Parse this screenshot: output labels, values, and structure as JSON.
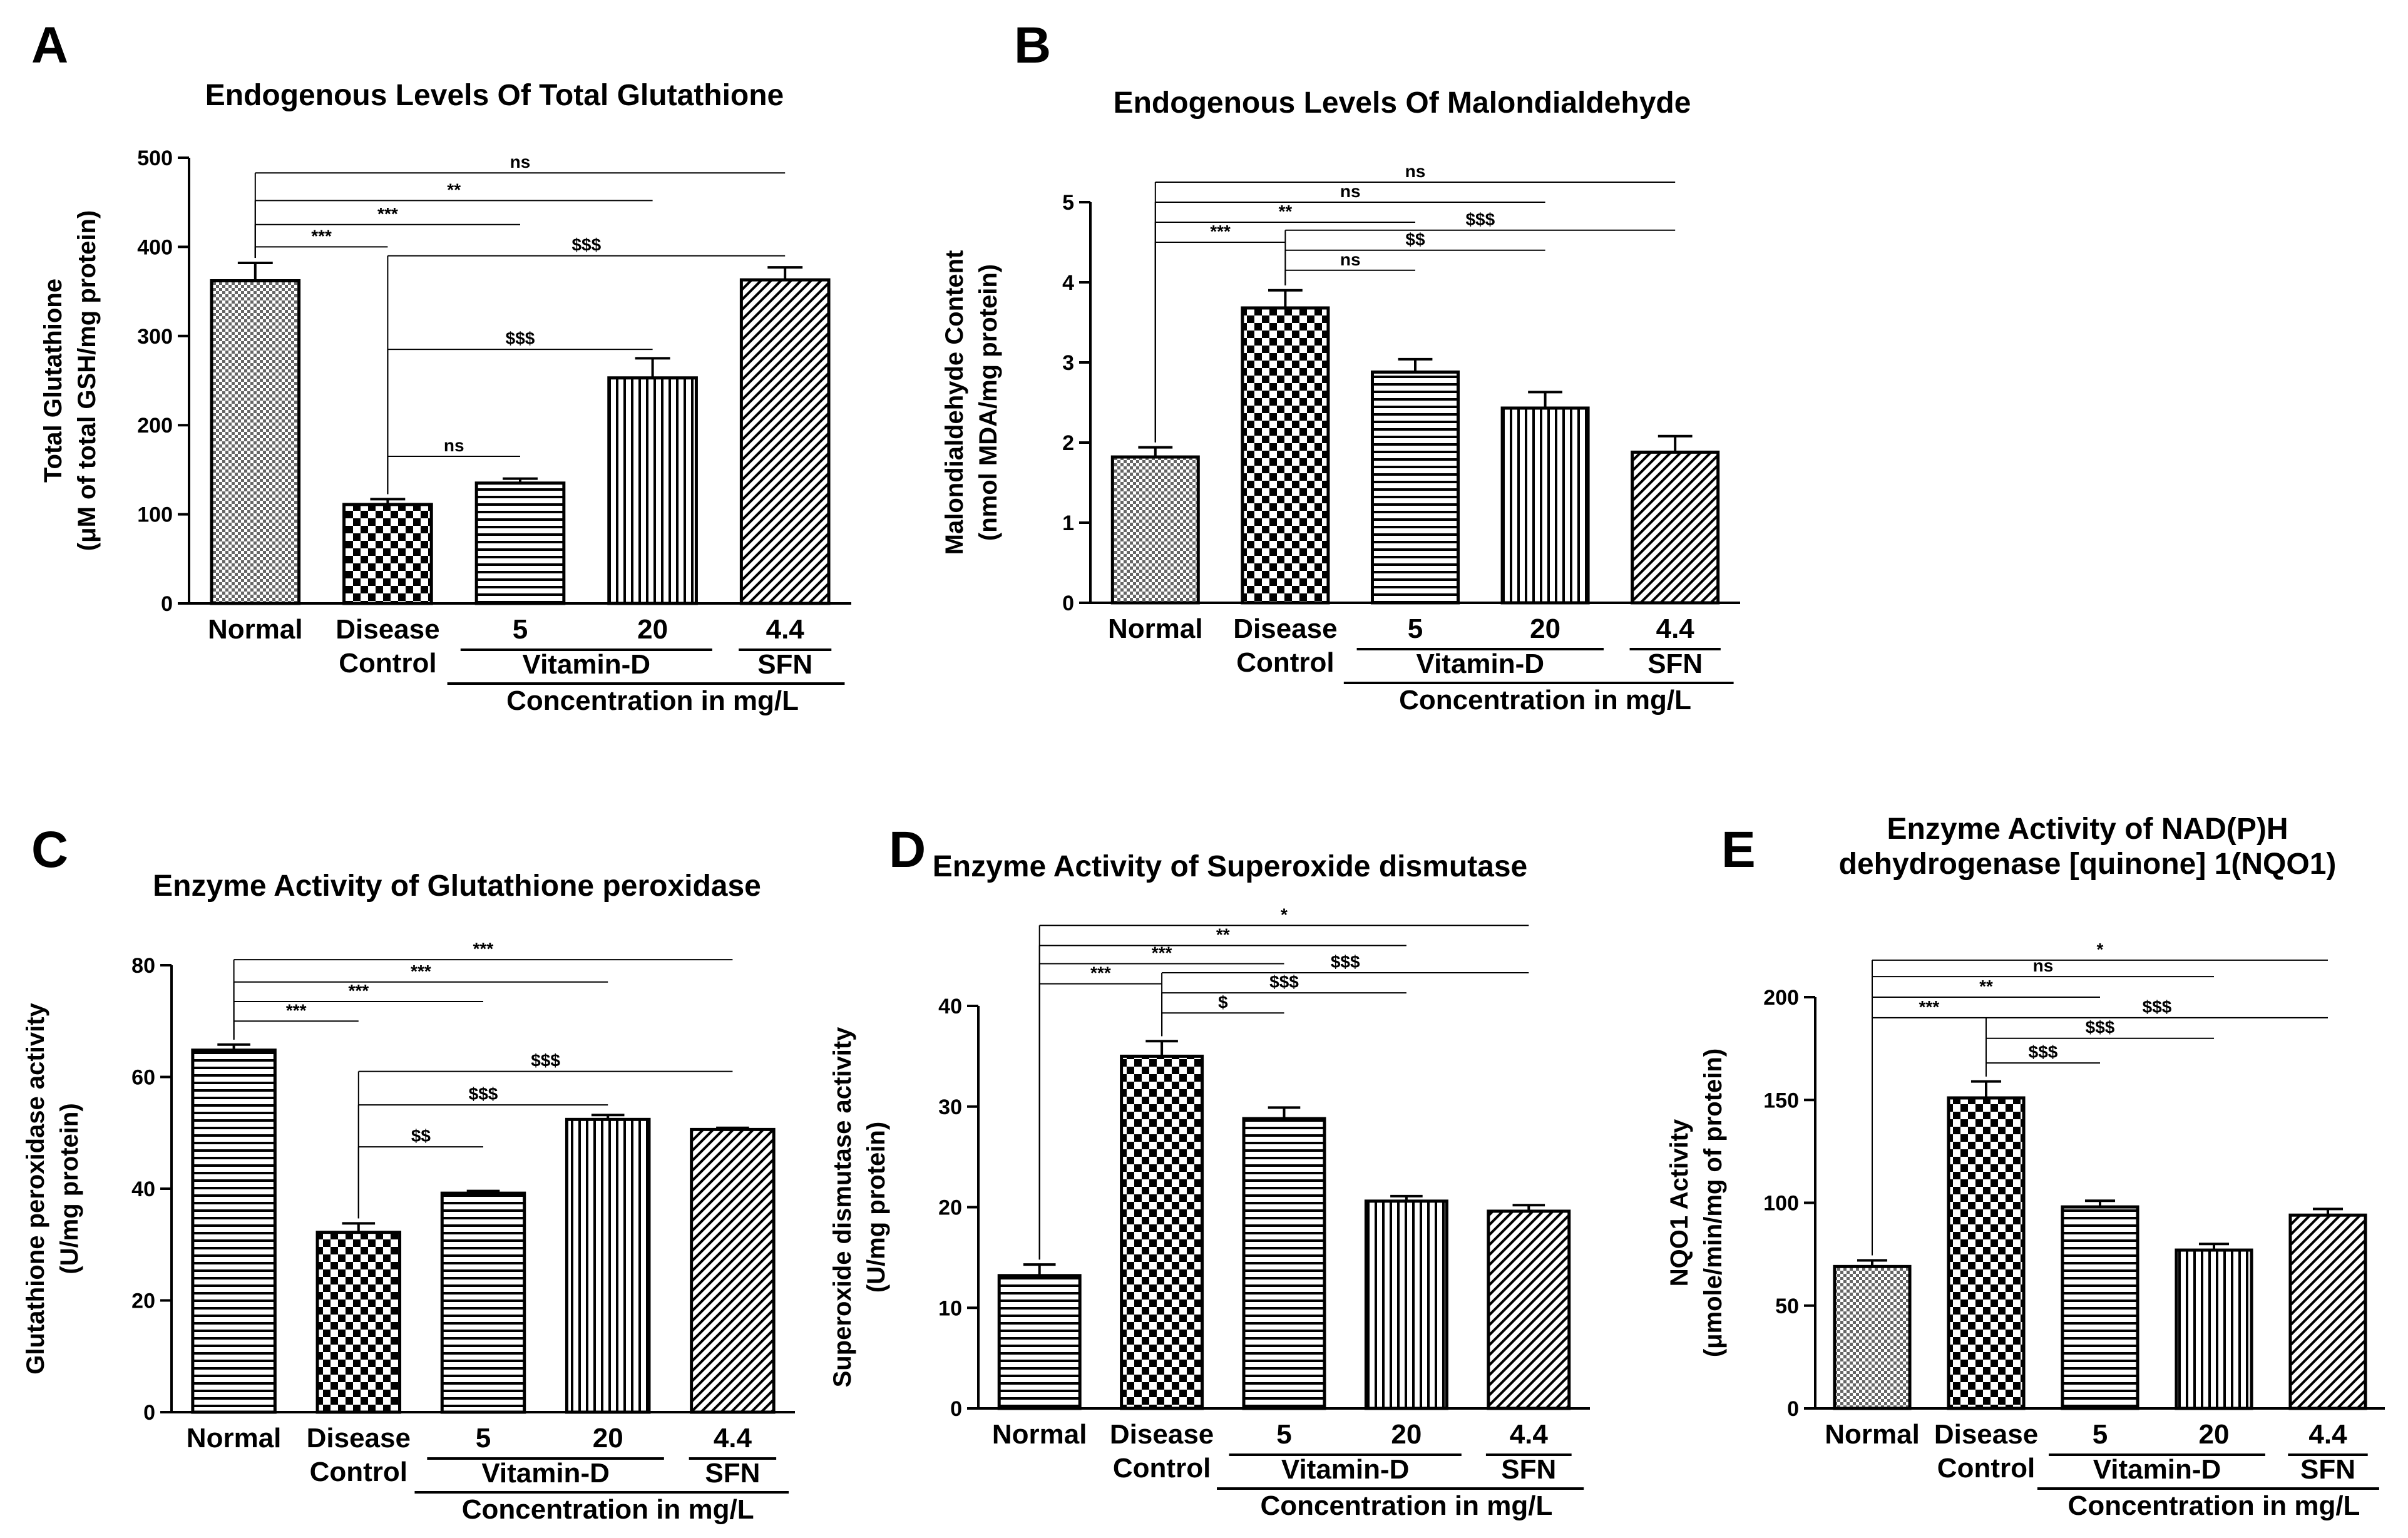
{
  "figure_colors": {
    "ink": "#000000",
    "background": "#ffffff"
  },
  "chart_data": [
    {
      "panel": "A",
      "type": "bar",
      "title": [
        "Endogenous Levels Of Total Glutathione"
      ],
      "ylabel": [
        "Total Glutathione",
        "(μM of total GSH/mg protein)"
      ],
      "ylim": [
        0,
        500
      ],
      "yticks": [
        "0",
        "100",
        "200",
        "300",
        "400",
        "500"
      ],
      "categories": [
        "Normal",
        "Disease Control",
        "5",
        "20",
        "4.4"
      ],
      "category_labels": [
        [
          "Normal"
        ],
        [
          "Disease",
          "Control"
        ],
        [
          "5"
        ],
        [
          "20"
        ],
        [
          "4.4"
        ]
      ],
      "group_labels": {
        "vitamin": "Vitamin-D",
        "sfn": "SFN",
        "concentration": "Concentration in mg/L"
      },
      "values": [
        362,
        111,
        135,
        253,
        363
      ],
      "errors": [
        20,
        6,
        5,
        22,
        14
      ],
      "patterns": [
        "dots",
        "checker",
        "hlines",
        "vlines",
        "diag"
      ],
      "significance": [
        {
          "from": 0,
          "to": 1,
          "label": "***",
          "level": 400
        },
        {
          "from": 0,
          "to": 2,
          "label": "***",
          "level": 425
        },
        {
          "from": 0,
          "to": 3,
          "label": "**",
          "level": 452
        },
        {
          "from": 0,
          "to": 4,
          "label": "ns",
          "level": 483
        },
        {
          "from": 1,
          "to": 2,
          "label": "ns",
          "level": 165
        },
        {
          "from": 1,
          "to": 3,
          "label": "$$$",
          "level": 285
        },
        {
          "from": 1,
          "to": 4,
          "label": "$$$",
          "level": 390
        }
      ]
    },
    {
      "panel": "B",
      "type": "bar",
      "title": [
        "Endogenous Levels Of Malondialdehyde"
      ],
      "ylabel": [
        "Malondialdehyde Content",
        "(nmol MDA/mg protein)"
      ],
      "ylim": [
        0,
        5
      ],
      "yticks": [
        "0",
        "1",
        "2",
        "3",
        "4",
        "5"
      ],
      "categories": [
        "Normal",
        "Disease Control",
        "5",
        "20",
        "4.4"
      ],
      "category_labels": [
        [
          "Normal"
        ],
        [
          "Disease",
          "Control"
        ],
        [
          "5"
        ],
        [
          "20"
        ],
        [
          "4.4"
        ]
      ],
      "group_labels": {
        "vitamin": "Vitamin-D",
        "sfn": "SFN",
        "concentration": "Concentration in mg/L"
      },
      "values": [
        1.82,
        3.68,
        2.88,
        2.43,
        1.88
      ],
      "errors": [
        0.12,
        0.22,
        0.16,
        0.2,
        0.2
      ],
      "patterns": [
        "dots",
        "checker",
        "hlines",
        "vlines",
        "diag"
      ],
      "significance": [
        {
          "from": 0,
          "to": 1,
          "label": "***",
          "level": 4.5
        },
        {
          "from": 0,
          "to": 2,
          "label": "**",
          "level": 4.75
        },
        {
          "from": 0,
          "to": 3,
          "label": "ns",
          "level": 5.0
        },
        {
          "from": 0,
          "to": 4,
          "label": "ns",
          "level": 5.25
        },
        {
          "from": 1,
          "to": 2,
          "label": "ns",
          "level": 4.15
        },
        {
          "from": 1,
          "to": 3,
          "label": "$$",
          "level": 4.4
        },
        {
          "from": 1,
          "to": 4,
          "label": "$$$",
          "level": 4.65
        }
      ]
    },
    {
      "panel": "C",
      "type": "bar",
      "title": [
        "Enzyme Activity of Glutathione peroxidase"
      ],
      "ylabel": [
        "Glutathione peroxidase activity",
        "(U/mg protein)"
      ],
      "ylim": [
        0,
        80
      ],
      "yticks": [
        "0",
        "20",
        "40",
        "60",
        "80"
      ],
      "categories": [
        "Normal",
        "Disease Control",
        "5",
        "20",
        "4.4"
      ],
      "category_labels": [
        [
          "Normal"
        ],
        [
          "Disease",
          "Control"
        ],
        [
          "5"
        ],
        [
          "20"
        ],
        [
          "4.4"
        ]
      ],
      "group_labels": {
        "vitamin": "Vitamin-D",
        "sfn": "SFN",
        "concentration": "Concentration in mg/L"
      },
      "values": [
        64.8,
        32.2,
        39.2,
        52.4,
        50.6
      ],
      "errors": [
        1.0,
        1.6,
        0.4,
        0.8,
        0.3
      ],
      "patterns": [
        "hlines",
        "checker",
        "hlines",
        "vlines",
        "diag"
      ],
      "significance": [
        {
          "from": 0,
          "to": 1,
          "label": "***",
          "level": 70
        },
        {
          "from": 0,
          "to": 2,
          "label": "***",
          "level": 73.5
        },
        {
          "from": 0,
          "to": 3,
          "label": "***",
          "level": 77
        },
        {
          "from": 0,
          "to": 4,
          "label": "***",
          "level": 81
        },
        {
          "from": 1,
          "to": 2,
          "label": "$$",
          "level": 47.5
        },
        {
          "from": 1,
          "to": 3,
          "label": "$$$",
          "level": 55
        },
        {
          "from": 1,
          "to": 4,
          "label": "$$$",
          "level": 61
        }
      ]
    },
    {
      "panel": "D",
      "type": "bar",
      "title": [
        "Enzyme Activity of Superoxide dismutase"
      ],
      "ylabel": [
        "Superoxide dismutase activity",
        "(U/mg protein)"
      ],
      "ylim": [
        0,
        40
      ],
      "yticks": [
        "0",
        "10",
        "20",
        "30",
        "40"
      ],
      "categories": [
        "Normal",
        "Disease Control",
        "5",
        "20",
        "4.4"
      ],
      "category_labels": [
        [
          "Normal"
        ],
        [
          "Disease",
          "Control"
        ],
        [
          "5"
        ],
        [
          "20"
        ],
        [
          "4.4"
        ]
      ],
      "group_labels": {
        "vitamin": "Vitamin-D",
        "sfn": "SFN",
        "concentration": "Concentration in mg/L"
      },
      "values": [
        13.2,
        35.0,
        28.8,
        20.6,
        19.6
      ],
      "errors": [
        1.1,
        1.5,
        1.1,
        0.5,
        0.6
      ],
      "patterns": [
        "hlines",
        "checker",
        "hlines",
        "vlines",
        "diag"
      ],
      "significance": [
        {
          "from": 0,
          "to": 1,
          "label": "***",
          "level": 42.2
        },
        {
          "from": 0,
          "to": 2,
          "label": "***",
          "level": 44.2
        },
        {
          "from": 0,
          "to": 3,
          "label": "**",
          "level": 46.0
        },
        {
          "from": 0,
          "to": 4,
          "label": "*",
          "level": 48.0
        },
        {
          "from": 1,
          "to": 2,
          "label": "$",
          "level": 39.3
        },
        {
          "from": 1,
          "to": 3,
          "label": "$$$",
          "level": 41.3
        },
        {
          "from": 1,
          "to": 4,
          "label": "$$$",
          "level": 43.3
        }
      ]
    },
    {
      "panel": "E",
      "type": "bar",
      "title": [
        "Enzyme Activity of NAD(P)H",
        "dehydrogenase [quinone] 1(NQO1)"
      ],
      "ylabel": [
        "NQO1 Activity",
        "(μmole/min/mg of protein)"
      ],
      "ylim": [
        0,
        200
      ],
      "yticks": [
        "0",
        "50",
        "100",
        "150",
        "200"
      ],
      "categories": [
        "Normal",
        "Disease Control",
        "5",
        "20",
        "4.4"
      ],
      "category_labels": [
        [
          "Normal"
        ],
        [
          "Disease",
          "Control"
        ],
        [
          "5"
        ],
        [
          "20"
        ],
        [
          "4.4"
        ]
      ],
      "group_labels": {
        "vitamin": "Vitamin-D",
        "sfn": "SFN",
        "concentration": "Concentration in mg/L"
      },
      "values": [
        69,
        151,
        98,
        77,
        94
      ],
      "errors": [
        3,
        8,
        3,
        3,
        3
      ],
      "patterns": [
        "dots",
        "checker",
        "hlines",
        "vlines",
        "diag"
      ],
      "significance": [
        {
          "from": 0,
          "to": 1,
          "label": "***",
          "level": 190
        },
        {
          "from": 0,
          "to": 2,
          "label": "**",
          "level": 200
        },
        {
          "from": 0,
          "to": 3,
          "label": "ns",
          "level": 210
        },
        {
          "from": 0,
          "to": 4,
          "label": "*",
          "level": 218
        },
        {
          "from": 1,
          "to": 2,
          "label": "$$$",
          "level": 168
        },
        {
          "from": 1,
          "to": 3,
          "label": "$$$",
          "level": 180
        },
        {
          "from": 1,
          "to": 4,
          "label": "$$$",
          "level": 190
        }
      ]
    }
  ]
}
